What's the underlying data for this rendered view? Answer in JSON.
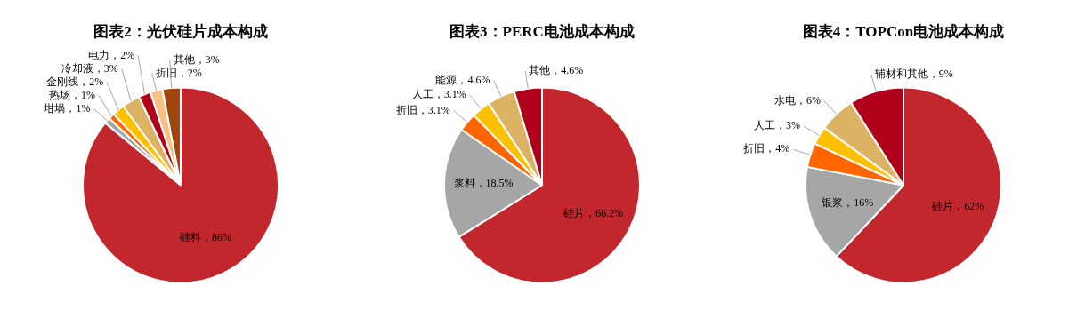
{
  "chart_data": [
    {
      "type": "pie",
      "title": "图表2：光伏硅片成本构成",
      "categories": [
        "硅料",
        "坩埚",
        "热场",
        "金刚线",
        "冷却液",
        "电力",
        "折旧",
        "其他"
      ],
      "values": [
        86,
        1,
        1,
        2,
        3,
        2,
        2,
        3
      ],
      "colors": [
        "#c1272d",
        "#a6a6a6",
        "#ff6600",
        "#ffc000",
        "#dcb264",
        "#b0001a",
        "#f9c07f",
        "#a0450f"
      ],
      "value_labels": [
        "86%",
        "1%",
        "1%",
        "2%",
        "3%",
        "2%",
        "2%",
        "3%"
      ],
      "legend": false
    },
    {
      "type": "pie",
      "title": "图表3：PERC电池成本构成",
      "categories": [
        "硅片",
        "浆料",
        "折旧",
        "人工",
        "能源",
        "其他"
      ],
      "values": [
        66.2,
        18.5,
        3.1,
        3.1,
        4.6,
        4.6
      ],
      "colors": [
        "#c1272d",
        "#a6a6a6",
        "#ff6600",
        "#ffc000",
        "#dcb264",
        "#b0001a"
      ],
      "value_labels": [
        "66.2%",
        "18.5%",
        "3.1%",
        "3.1%",
        "4.6%",
        "4.6%"
      ],
      "legend": false
    },
    {
      "type": "pie",
      "title": "图表4：TOPCon电池成本构成",
      "categories": [
        "硅片",
        "银浆",
        "折旧",
        "人工",
        "水电",
        "辅材和其他"
      ],
      "values": [
        62,
        16,
        4,
        3,
        6,
        9
      ],
      "colors": [
        "#c1272d",
        "#a6a6a6",
        "#ff6600",
        "#ffc000",
        "#dcb264",
        "#b0001a"
      ],
      "value_labels": [
        "62%",
        "16%",
        "4%",
        "3%",
        "6%",
        "9%"
      ],
      "legend": false
    }
  ]
}
